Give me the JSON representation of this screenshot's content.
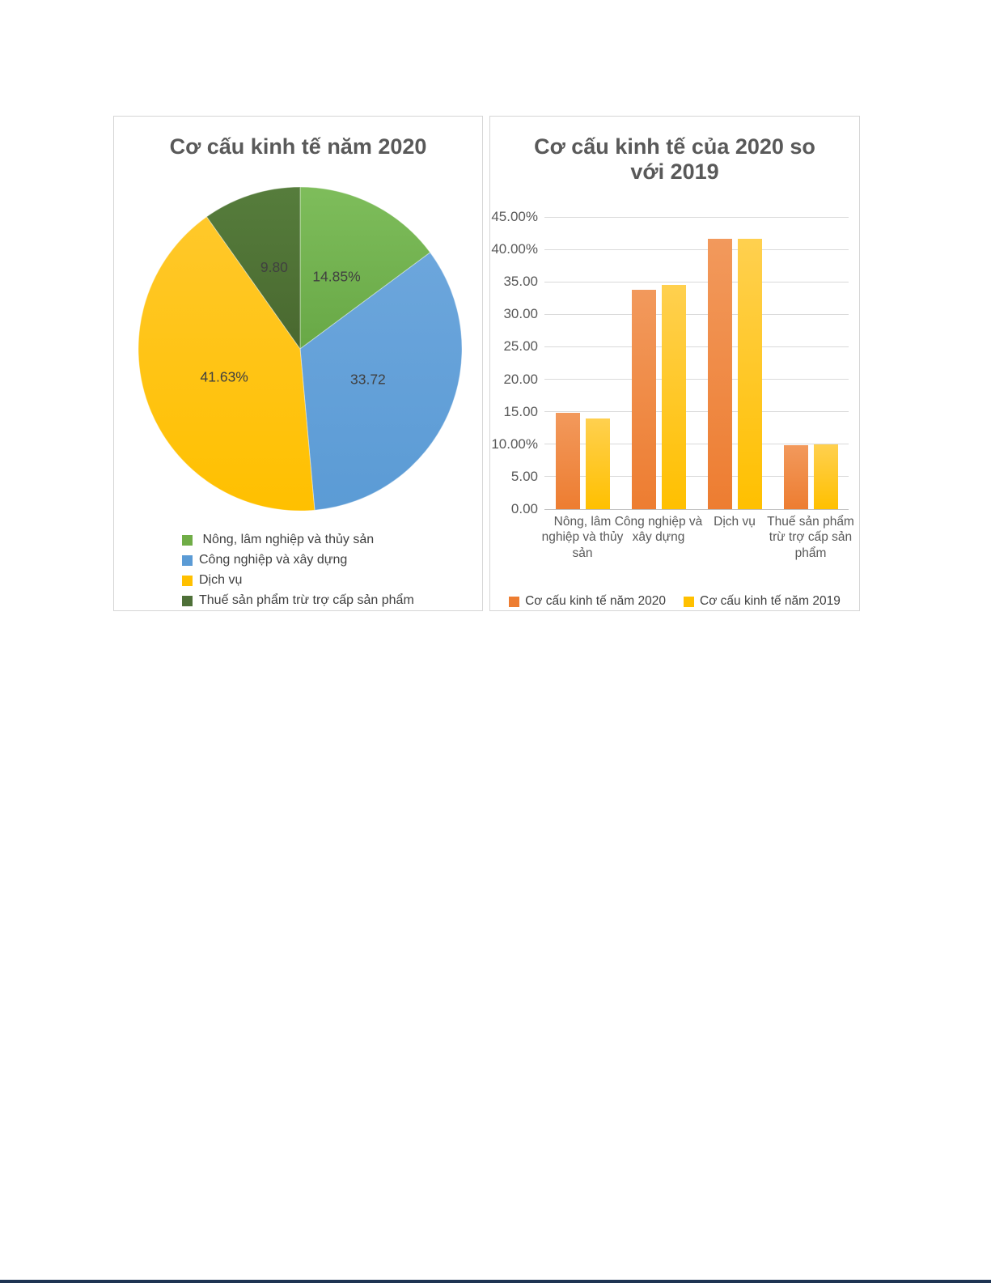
{
  "page": {
    "background": "#FFFFFF",
    "bottom_edge_color": "#1E3452"
  },
  "chart_data": [
    {
      "type": "pie",
      "title": "Cơ cấu kinh tế năm 2020",
      "labels": [
        "Nông, lâm nghiệp và thủy sản",
        "Công nghiệp và xây dựng",
        "Dịch vụ",
        "Thuế sản phẩm trừ trợ cấp sản phẩm"
      ],
      "values": [
        14.85,
        33.72,
        41.63,
        9.8
      ],
      "slice_labels": [
        "14.85%",
        "33.72",
        "41.63%",
        "9.80"
      ],
      "start_angle_deg": 0,
      "direction": "clockwise",
      "colors_top": [
        "#7EBD5B",
        "#6CA6DC",
        "#FFC82A",
        "#567D3C"
      ],
      "colors_bottom": [
        "#68A846",
        "#5B9BD5",
        "#FFC000",
        "#49682F"
      ],
      "legend_position": "bottom-left",
      "legend_labels": [
        " Nông, lâm nghiệp và thủy sản",
        "Công nghiệp và xây dựng",
        "Dịch vụ",
        "Thuế sản phẩm trừ trợ cấp sản phẩm"
      ],
      "legend_swatch_colors": [
        "#70AD47",
        "#5B9BD5",
        "#FFC000",
        "#4E7038"
      ]
    },
    {
      "type": "bar",
      "title": "Cơ cấu kinh tế của 2020 so với 2019",
      "categories": [
        "Nông, lâm nghiệp và thủy sản",
        "Công nghiệp và xây dựng",
        "Dịch vụ",
        "Thuế sản phẩm trừ trợ cấp sản phẩm"
      ],
      "series": [
        {
          "name": "Cơ cấu kinh tế năm 2020",
          "values": [
            14.85,
            33.72,
            41.63,
            9.8
          ],
          "color_top": "#F2995C",
          "color_bottom": "#ED7D31",
          "swatch": "#ED7D31"
        },
        {
          "name": "Cơ cấu kinh tế năm 2019",
          "values": [
            13.96,
            34.49,
            41.64,
            9.91
          ],
          "color_top": "#FFD04F",
          "color_bottom": "#FFC000",
          "swatch": "#FFC000"
        }
      ],
      "ylim": [
        0,
        45
      ],
      "grid": true,
      "y_ticks": [
        {
          "value": 0,
          "label": "0.00"
        },
        {
          "value": 5,
          "label": "5.00"
        },
        {
          "value": 10,
          "label": "10.00%"
        },
        {
          "value": 15,
          "label": "15.00"
        },
        {
          "value": 20,
          "label": "20.00"
        },
        {
          "value": 25,
          "label": "25.00"
        },
        {
          "value": 30,
          "label": "30.00"
        },
        {
          "value": 35,
          "label": "35.00"
        },
        {
          "value": 40,
          "label": "40.00%"
        },
        {
          "value": 45,
          "label": "45.00%"
        }
      ],
      "legend_position": "bottom"
    }
  ]
}
